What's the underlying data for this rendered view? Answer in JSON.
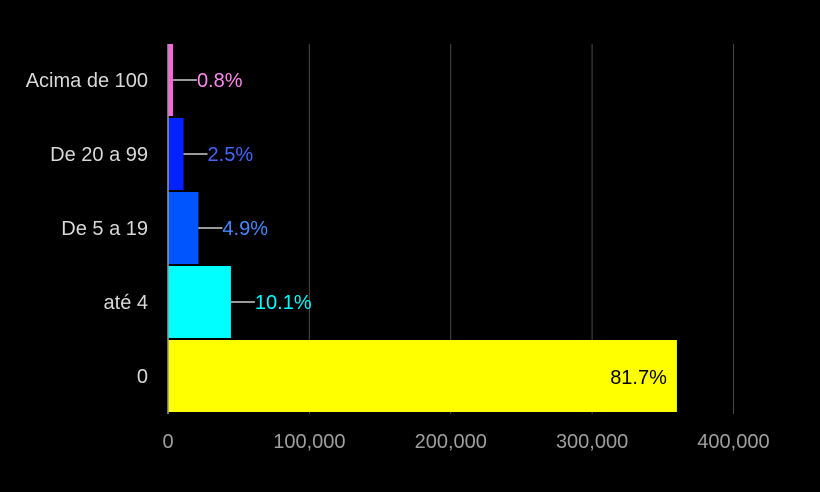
{
  "chart_data": {
    "type": "bar",
    "orientation": "horizontal",
    "title": "",
    "xlabel": "",
    "ylabel": "",
    "categories": [
      "Acima de 100",
      "De 20 a 99",
      "De 5 a 19",
      "até 4",
      "0"
    ],
    "values": [
      3500,
      11000,
      21500,
      44500,
      360000
    ],
    "labels": [
      "0.8%",
      "2.5%",
      "4.9%",
      "10.1%",
      "81.7%"
    ],
    "colors": [
      "#ff66dd",
      "#0022ff",
      "#0055ff",
      "#00ffff",
      "#ffff00"
    ],
    "label_colors": [
      "#ff88ee",
      "#4466ff",
      "#4488ff",
      "#00ffff",
      "#000000"
    ],
    "xlim": [
      0,
      440000
    ],
    "x_ticks": [
      0,
      100000,
      200000,
      300000,
      400000
    ],
    "x_tick_labels": [
      "0",
      "100,000",
      "200,000",
      "300,000",
      "400,000"
    ],
    "grid": true,
    "legend": "none"
  }
}
